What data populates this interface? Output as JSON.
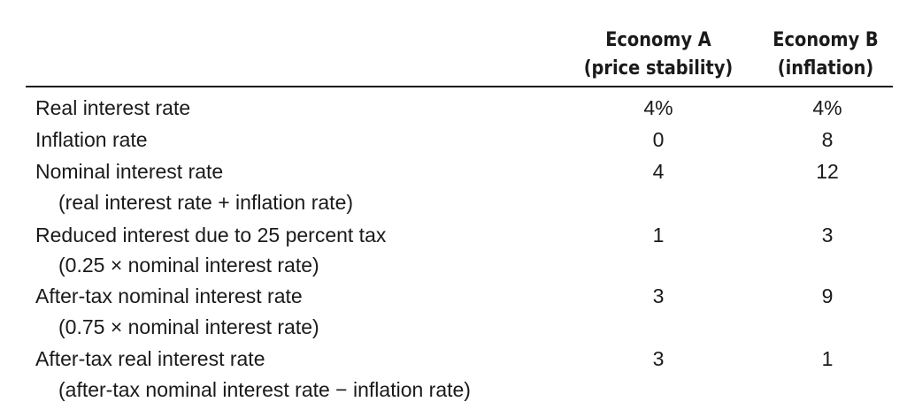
{
  "header": {
    "col_a_line1": "Economy A",
    "col_a_line2": "(price stability)",
    "col_b_line1": "Economy B",
    "col_b_line2": "(inflation)"
  },
  "rows": [
    {
      "label": "Real interest rate",
      "sub": "",
      "a": "4%",
      "b": "4%"
    },
    {
      "label": "Inflation rate",
      "sub": "",
      "a": "0",
      "b": "8"
    },
    {
      "label": "Nominal interest rate",
      "sub": "(real interest rate + inflation rate)",
      "a": "4",
      "b": "12"
    },
    {
      "label": "Reduced interest due to 25 percent tax",
      "sub": "(0.25 × nominal interest rate)",
      "a": "1",
      "b": "3"
    },
    {
      "label": "After-tax nominal interest rate",
      "sub": "(0.75 × nominal interest rate)",
      "a": "3",
      "b": "9"
    },
    {
      "label": "After-tax real interest rate",
      "sub": "(after-tax nominal interest rate − inflation rate)",
      "a": "3",
      "b": "1"
    }
  ]
}
